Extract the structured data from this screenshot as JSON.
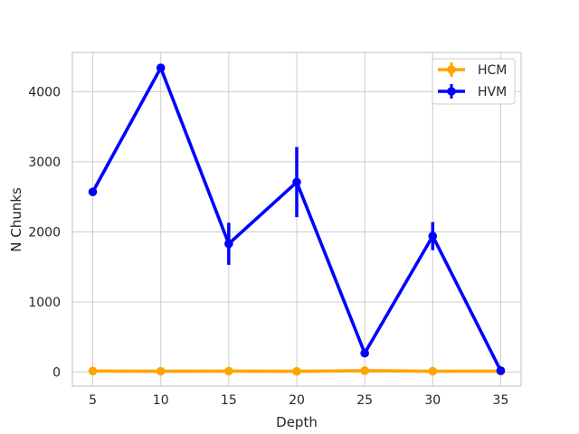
{
  "chart_data": {
    "type": "line",
    "title": "",
    "xlabel": "Depth",
    "ylabel": "N Chunks",
    "x": [
      5,
      10,
      15,
      20,
      25,
      30,
      35
    ],
    "xticks": [
      "5",
      "10",
      "15",
      "20",
      "25",
      "30",
      "35"
    ],
    "yticks": [
      "0",
      "1000",
      "2000",
      "3000",
      "4000"
    ],
    "xlim": [
      3.5,
      36.5
    ],
    "ylim": [
      -200,
      4560
    ],
    "grid": true,
    "legend_position": "top-right",
    "series": [
      {
        "name": "HCM",
        "color": "#ffa500",
        "values": [
          15,
          12,
          14,
          10,
          20,
          12,
          14
        ],
        "err_low": [
          15,
          12,
          14,
          10,
          20,
          12,
          14
        ],
        "err_high": [
          15,
          12,
          14,
          10,
          20,
          12,
          14
        ]
      },
      {
        "name": "HVM",
        "color": "#0000ff",
        "values": [
          2570,
          4340,
          1830,
          2710,
          270,
          1940,
          20
        ],
        "err_low": [
          2570,
          4340,
          1530,
          2210,
          270,
          1740,
          20
        ],
        "err_high": [
          2570,
          4340,
          2130,
          3210,
          270,
          2140,
          20
        ]
      }
    ]
  }
}
